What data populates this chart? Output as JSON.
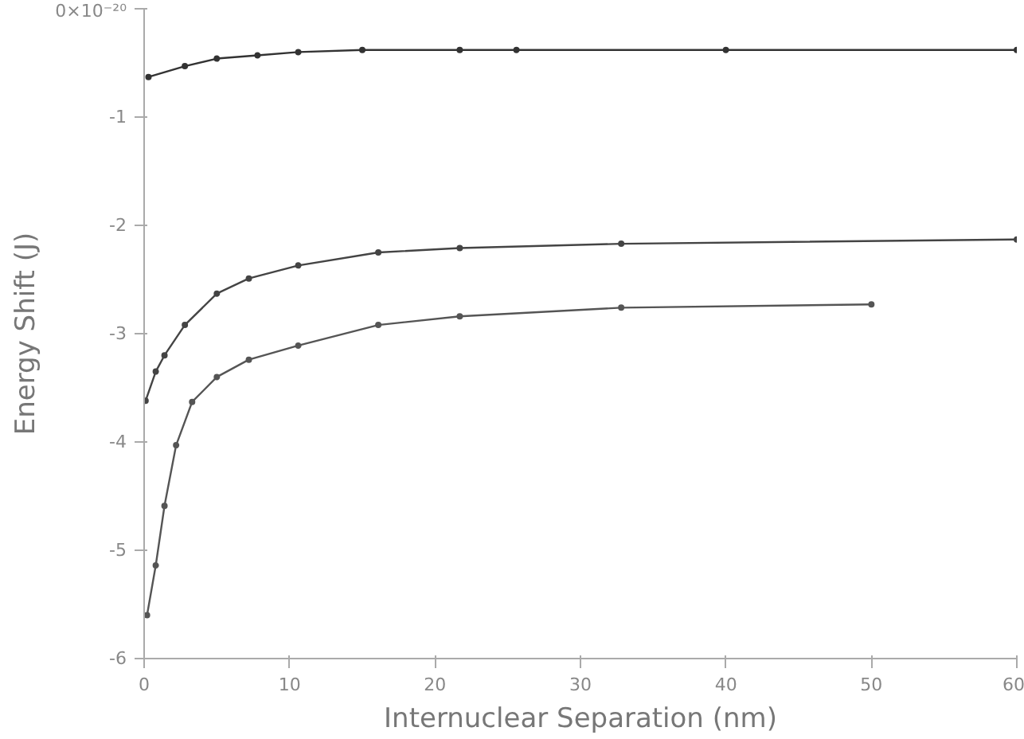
{
  "chart_data": {
    "type": "line",
    "xlabel": "Internuclear Separation (nm)",
    "ylabel": "Energy Shift (J)",
    "xlim": [
      0,
      60
    ],
    "ylim": [
      -6,
      0
    ],
    "xticks": [
      0,
      10,
      20,
      30,
      40,
      50,
      60
    ],
    "yticks": [
      {
        "value": 0,
        "label": "0×10⁻²⁰"
      },
      {
        "value": -1,
        "label": "-1"
      },
      {
        "value": -2,
        "label": "-2"
      },
      {
        "value": -3,
        "label": "-3"
      },
      {
        "value": -4,
        "label": "-4"
      },
      {
        "value": -5,
        "label": "-5"
      },
      {
        "value": -6,
        "label": "-6"
      }
    ],
    "grid": false,
    "marker": "circle",
    "line_style": "solid",
    "series": [
      {
        "color": "#333333",
        "x": [
          0.3,
          2.8,
          5,
          7.8,
          10.6,
          15,
          21.7,
          25.6,
          40,
          60
        ],
        "values": [
          -0.63,
          -0.53,
          -0.46,
          -0.43,
          -0.4,
          -0.38,
          -0.38,
          -0.38,
          -0.38,
          -0.38
        ]
      },
      {
        "color": "#444444",
        "x": [
          0.1,
          0.8,
          1.4,
          2.8,
          5,
          7.2,
          10.6,
          16.1,
          21.7,
          32.8,
          60
        ],
        "values": [
          -3.62,
          -3.35,
          -3.2,
          -2.92,
          -2.63,
          -2.49,
          -2.37,
          -2.25,
          -2.21,
          -2.17,
          -2.13
        ]
      },
      {
        "color": "#555555",
        "x": [
          0.2,
          0.8,
          1.4,
          2.2,
          3.3,
          5,
          7.2,
          10.6,
          16.1,
          21.7,
          32.8,
          50
        ],
        "values": [
          -5.6,
          -5.14,
          -4.59,
          -4.03,
          -3.63,
          -3.4,
          -3.24,
          -3.11,
          -2.92,
          -2.84,
          -2.76,
          -2.73
        ]
      }
    ]
  }
}
